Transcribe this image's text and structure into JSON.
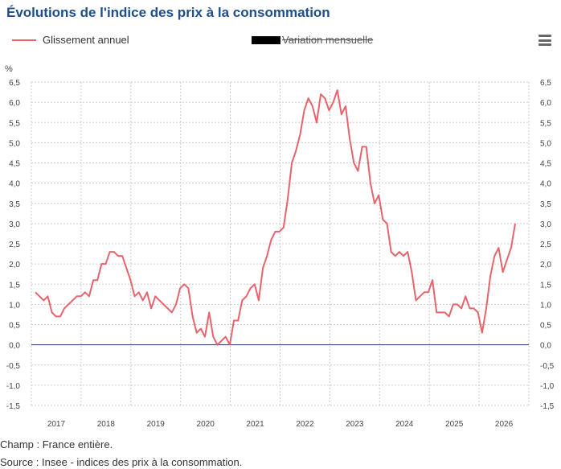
{
  "title": "Évolutions de l'indice des prix à la consommation",
  "legend": {
    "series1_label": "Glissement annuel",
    "series2_label": "Variation mensuelle"
  },
  "colors": {
    "series1": "#e8646c",
    "zero_line": "#1f3a6e",
    "grid": "#cccccc"
  },
  "icons": {
    "menu": "hamburger-menu-icon"
  },
  "footer": {
    "champ": "Champ : France entière.",
    "source": "Source : Insee - indices des prix à la consommation."
  },
  "chart_data": {
    "type": "line",
    "title": "Évolutions de l'indice des prix à la consommation",
    "ylabel": "%",
    "xlabel": "",
    "ylim": [
      -1.5,
      6.5
    ],
    "yticks": [
      "-1,5",
      "-1,0",
      "-0,5",
      "0,0",
      "0,5",
      "1,0",
      "1,5",
      "2,0",
      "2,5",
      "3,0",
      "3,5",
      "4,0",
      "4,5",
      "5,0",
      "5,5",
      "6,0",
      "6,5"
    ],
    "ytick_values": [
      -1.5,
      -1.0,
      -0.5,
      0.0,
      0.5,
      1.0,
      1.5,
      2.0,
      2.5,
      3.0,
      3.5,
      4.0,
      4.5,
      5.0,
      5.5,
      6.0,
      6.5
    ],
    "xticks": [
      "2017",
      "2018",
      "2019",
      "2020",
      "2021",
      "2022",
      "2023",
      "2024",
      "2025",
      "2026"
    ],
    "grid": true,
    "legend_position": "top-left",
    "series": [
      {
        "name": "Glissement annuel",
        "values": [
          1.3,
          1.2,
          1.1,
          1.2,
          0.8,
          0.7,
          0.7,
          0.9,
          1.0,
          1.1,
          1.2,
          1.2,
          1.3,
          1.2,
          1.6,
          1.6,
          2.0,
          2.0,
          2.3,
          2.3,
          2.2,
          2.2,
          1.9,
          1.6,
          1.2,
          1.3,
          1.1,
          1.3,
          0.9,
          1.2,
          1.1,
          1.0,
          0.9,
          0.8,
          1.0,
          1.4,
          1.5,
          1.4,
          0.7,
          0.3,
          0.4,
          0.2,
          0.8,
          0.2,
          0.0,
          0.1,
          0.2,
          0.0,
          0.6,
          0.6,
          1.1,
          1.2,
          1.4,
          1.5,
          1.1,
          1.9,
          2.2,
          2.6,
          2.8,
          2.8,
          2.9,
          3.6,
          4.5,
          4.8,
          5.2,
          5.8,
          6.1,
          5.9,
          5.5,
          6.2,
          6.1,
          5.8,
          6.0,
          6.3,
          5.7,
          5.9,
          5.1,
          4.5,
          4.3,
          4.9,
          4.9,
          4.0,
          3.5,
          3.7,
          3.1,
          3.0,
          2.3,
          2.2,
          2.3,
          2.2,
          2.3,
          1.8,
          1.1,
          1.2,
          1.3,
          1.3,
          1.6,
          0.8,
          0.8,
          0.8,
          0.7,
          1.0,
          1.0,
          0.9,
          1.2,
          0.9,
          0.9,
          0.8,
          0.3,
          0.9,
          1.7,
          2.2,
          2.4,
          1.8,
          2.1,
          2.4,
          3.0
        ]
      },
      {
        "name": "Variation mensuelle",
        "hidden": true,
        "values": []
      }
    ]
  }
}
